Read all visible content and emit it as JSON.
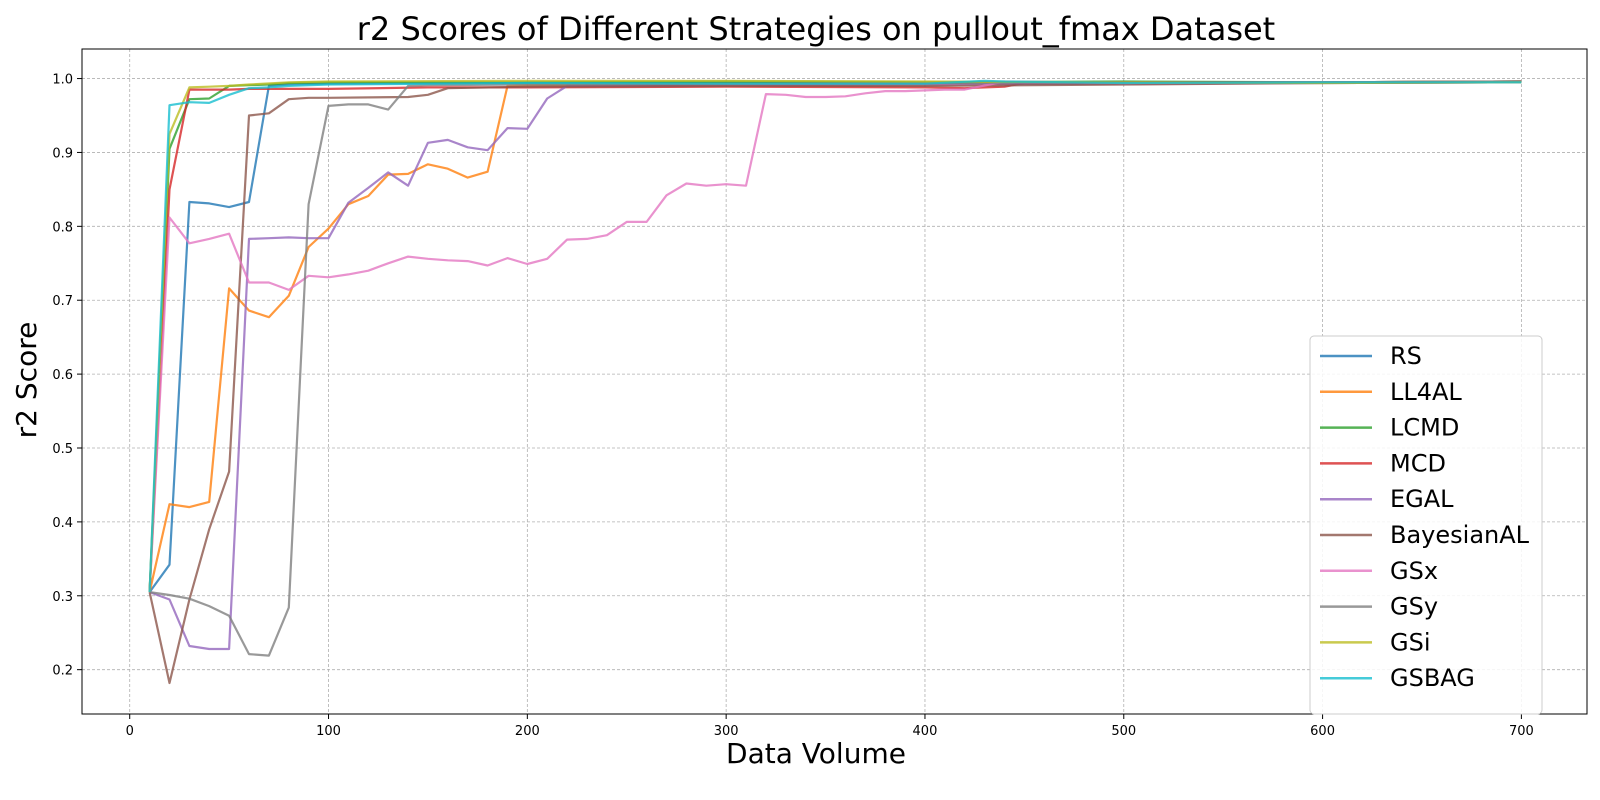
{
  "chart_data": {
    "type": "line",
    "title": "r2 Scores of Different Strategies on pullout_fmax Dataset",
    "xlabel": "Data Volume",
    "ylabel": "r2 Score",
    "xlim": [
      -24,
      733
    ],
    "ylim": [
      0.14,
      1.04
    ],
    "xticks": [
      0,
      100,
      200,
      300,
      400,
      500,
      600,
      700
    ],
    "yticks": [
      0.2,
      0.3,
      0.4,
      0.5,
      0.6,
      0.7,
      0.8,
      0.9,
      1.0
    ],
    "ytick_labels": [
      "0.2",
      "0.3",
      "0.4",
      "0.5",
      "0.6",
      "0.7",
      "0.8",
      "0.9",
      "1.0"
    ],
    "grid": true,
    "legend_position": "lower-right",
    "series": [
      {
        "name": "RS",
        "color": "#1f77b4",
        "x": [
          10,
          20,
          30,
          40,
          50,
          60,
          70,
          80,
          100,
          150,
          200,
          300,
          400,
          500,
          600,
          700
        ],
        "y": [
          0.305,
          0.342,
          0.833,
          0.831,
          0.826,
          0.833,
          0.99,
          0.992,
          0.993,
          0.994,
          0.994,
          0.994,
          0.994,
          0.995,
          0.995,
          0.996
        ]
      },
      {
        "name": "LL4AL",
        "color": "#ff7f0e",
        "x": [
          10,
          20,
          30,
          40,
          50,
          60,
          70,
          80,
          90,
          100,
          110,
          120,
          130,
          140,
          150,
          160,
          170,
          180,
          190,
          200,
          250,
          300,
          400,
          500,
          600,
          700
        ],
        "y": [
          0.305,
          0.424,
          0.42,
          0.427,
          0.716,
          0.686,
          0.677,
          0.706,
          0.772,
          0.797,
          0.83,
          0.841,
          0.87,
          0.871,
          0.884,
          0.878,
          0.866,
          0.874,
          0.99,
          0.991,
          0.992,
          0.993,
          0.994,
          0.995,
          0.995,
          0.996
        ]
      },
      {
        "name": "LCMD",
        "color": "#2ca02c",
        "x": [
          10,
          20,
          30,
          40,
          50,
          60,
          70,
          80,
          100,
          200,
          300,
          400,
          500,
          600,
          700
        ],
        "y": [
          0.305,
          0.905,
          0.972,
          0.973,
          0.99,
          0.991,
          0.992,
          0.994,
          0.995,
          0.995,
          0.996,
          0.995,
          0.996,
          0.995,
          0.996
        ]
      },
      {
        "name": "MCD",
        "color": "#d62728",
        "x": [
          10,
          20,
          30,
          40,
          50,
          60,
          80,
          100,
          150,
          200,
          300,
          400,
          420,
          440,
          450,
          500,
          600,
          700
        ],
        "y": [
          0.305,
          0.85,
          0.985,
          0.985,
          0.985,
          0.986,
          0.986,
          0.986,
          0.988,
          0.988,
          0.989,
          0.988,
          0.987,
          0.989,
          0.994,
          0.995,
          0.995,
          0.996
        ]
      },
      {
        "name": "EGAL",
        "color": "#9467bd",
        "x": [
          10,
          20,
          30,
          40,
          50,
          60,
          70,
          80,
          90,
          100,
          110,
          120,
          130,
          140,
          150,
          160,
          170,
          180,
          190,
          200,
          210,
          220,
          300,
          400,
          500,
          600,
          700
        ],
        "y": [
          0.305,
          0.295,
          0.232,
          0.228,
          0.228,
          0.783,
          0.784,
          0.785,
          0.784,
          0.784,
          0.832,
          0.852,
          0.873,
          0.855,
          0.913,
          0.917,
          0.907,
          0.903,
          0.933,
          0.932,
          0.973,
          0.99,
          0.991,
          0.992,
          0.993,
          0.994,
          0.995
        ]
      },
      {
        "name": "BayesianAL",
        "color": "#8c564b",
        "x": [
          10,
          20,
          30,
          40,
          50,
          60,
          70,
          80,
          90,
          100,
          140,
          150,
          160,
          200,
          300,
          400,
          500,
          600,
          700
        ],
        "y": [
          0.305,
          0.182,
          0.295,
          0.39,
          0.468,
          0.95,
          0.953,
          0.972,
          0.974,
          0.974,
          0.975,
          0.978,
          0.987,
          0.989,
          0.99,
          0.99,
          0.992,
          0.994,
          0.995
        ]
      },
      {
        "name": "GSx",
        "color": "#e377c2",
        "x": [
          10,
          20,
          30,
          40,
          50,
          60,
          70,
          80,
          90,
          100,
          110,
          120,
          130,
          140,
          150,
          160,
          170,
          180,
          190,
          200,
          210,
          220,
          230,
          240,
          250,
          260,
          270,
          280,
          290,
          300,
          310,
          320,
          330,
          340,
          350,
          360,
          370,
          380,
          390,
          400,
          410,
          420,
          440,
          500,
          600,
          700
        ],
        "y": [
          0.305,
          0.812,
          0.777,
          0.783,
          0.79,
          0.724,
          0.724,
          0.714,
          0.733,
          0.731,
          0.735,
          0.74,
          0.75,
          0.759,
          0.756,
          0.754,
          0.753,
          0.747,
          0.757,
          0.749,
          0.756,
          0.782,
          0.783,
          0.788,
          0.806,
          0.806,
          0.842,
          0.858,
          0.855,
          0.857,
          0.855,
          0.979,
          0.978,
          0.975,
          0.975,
          0.976,
          0.98,
          0.983,
          0.983,
          0.984,
          0.985,
          0.985,
          0.996,
          0.994,
          0.995,
          0.995
        ]
      },
      {
        "name": "GSy",
        "color": "#7f7f7f",
        "x": [
          10,
          20,
          30,
          40,
          50,
          60,
          70,
          80,
          90,
          100,
          110,
          120,
          130,
          140,
          150,
          200,
          300,
          400,
          500,
          600,
          700
        ],
        "y": [
          0.305,
          0.301,
          0.296,
          0.286,
          0.273,
          0.221,
          0.219,
          0.284,
          0.83,
          0.963,
          0.965,
          0.965,
          0.958,
          0.99,
          0.991,
          0.992,
          0.993,
          0.994,
          0.995,
          0.995,
          0.996
        ]
      },
      {
        "name": "GSi",
        "color": "#bcbd22",
        "x": [
          10,
          20,
          30,
          40,
          50,
          60,
          80,
          100,
          200,
          300,
          400,
          500,
          600,
          700
        ],
        "y": [
          0.305,
          0.925,
          0.988,
          0.989,
          0.99,
          0.992,
          0.995,
          0.996,
          0.997,
          0.997,
          0.996,
          0.995,
          0.994,
          0.995
        ]
      },
      {
        "name": "GSBAG",
        "color": "#17becf",
        "x": [
          10,
          20,
          30,
          40,
          50,
          60,
          70,
          80,
          100,
          200,
          300,
          400,
          430,
          440,
          500,
          600,
          700
        ],
        "y": [
          0.305,
          0.964,
          0.968,
          0.967,
          0.978,
          0.987,
          0.988,
          0.99,
          0.992,
          0.994,
          0.993,
          0.993,
          0.997,
          0.996,
          0.994,
          0.995,
          0.995
        ]
      }
    ]
  }
}
